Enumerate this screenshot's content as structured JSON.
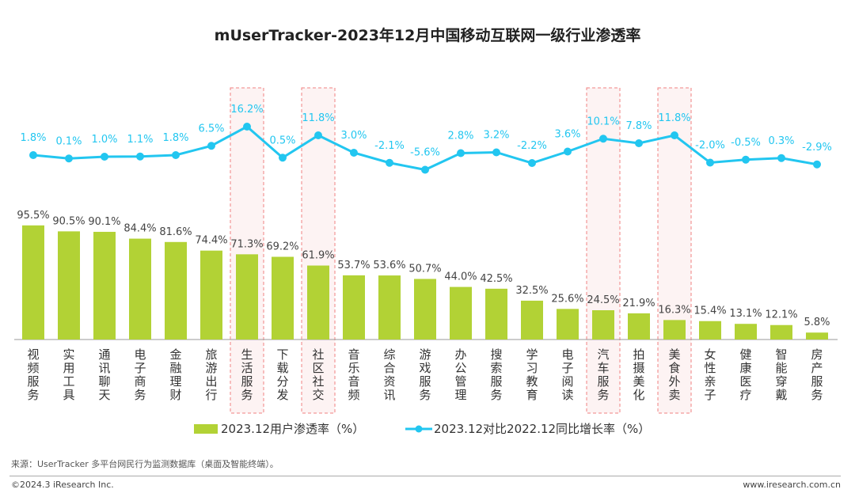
{
  "title": "mUserTracker-2023年12月中国移动互联网一级行业渗透率",
  "chart_data": {
    "type": "bar+line",
    "title": "mUserTracker-2023年12月中国移动互联网一级行业渗透率",
    "categories": [
      "视频服务",
      "实用工具",
      "通讯聊天",
      "电子商务",
      "金融理财",
      "旅游出行",
      "生活服务",
      "下载分发",
      "社区社交",
      "音乐音频",
      "综合资讯",
      "游戏服务",
      "办公管理",
      "搜索服务",
      "学习教育",
      "电子阅读",
      "汽车服务",
      "拍摄美化",
      "美食外卖",
      "女性亲子",
      "健康医疗",
      "智能穿戴",
      "房产服务"
    ],
    "series": [
      {
        "name": "2023.12用户渗透率（%）",
        "type": "bar",
        "color": "#b2d235",
        "values": [
          95.5,
          90.5,
          90.1,
          84.4,
          81.6,
          74.4,
          71.3,
          69.2,
          61.9,
          53.7,
          53.6,
          50.7,
          44.0,
          42.5,
          32.5,
          25.6,
          24.5,
          21.9,
          16.3,
          15.4,
          13.1,
          12.1,
          5.8
        ]
      },
      {
        "name": "2023.12对比2022.12同比增长率（%）",
        "type": "line",
        "color": "#22c6f0",
        "values": [
          1.8,
          0.1,
          1.0,
          1.1,
          1.8,
          6.5,
          16.2,
          0.5,
          11.8,
          3.0,
          -2.1,
          -5.6,
          2.8,
          3.2,
          -2.2,
          3.6,
          10.1,
          7.8,
          11.8,
          -2.0,
          -0.5,
          0.3,
          -2.9
        ]
      }
    ],
    "highlighted_categories": [
      "生活服务",
      "社区社交",
      "汽车服务",
      "美食外卖"
    ],
    "highlight_color": "#f08080",
    "legend_position": "bottom",
    "grid": false
  },
  "legend": {
    "bar_label": "2023.12用户渗透率（%）",
    "line_label": "2023.12对比2022.12同比增长率（%）"
  },
  "footer": {
    "source": "来源：UserTracker 多平台网民行为监测数据库（桌面及智能终端）。",
    "copyright": "©2024.3 iResearch Inc.",
    "website": "www.iresearch.com.cn"
  }
}
